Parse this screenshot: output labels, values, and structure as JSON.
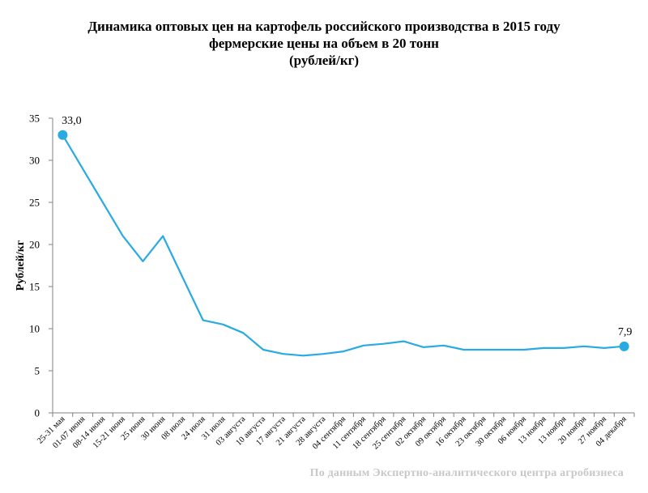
{
  "title": {
    "line1": "Динамика оптовых цен на картофель российского производства в 2015 году",
    "line2": "фермерские цены на объем в 20 тонн",
    "line3": "(рублей/кг)"
  },
  "source_note": "По данным Экспертно-аналитического центра агробизнеса",
  "chart_data": {
    "type": "line",
    "ylabel": "Рублей/кг",
    "xlabel": "",
    "ylim": [
      0,
      35
    ],
    "yticks": [
      "0",
      "5",
      "10",
      "15",
      "20",
      "25",
      "30",
      "35"
    ],
    "grid": false,
    "line_color": "#29abe2",
    "categories": [
      "25-31 мая",
      "01-07 июня",
      "08-14 июня",
      "15-21 июня",
      "25 июня",
      "30 июня",
      "08 июля",
      "24 июля",
      "31 июля",
      "03 августа",
      "10 августа",
      "17 августа",
      "21 августа",
      "28 августа",
      "04 сентября",
      "11 сентября",
      "18 сентября",
      "25 сентября",
      "02 октября",
      "09 октября",
      "16 октября",
      "23 октября",
      "30 октября",
      "06 ноября",
      "13 ноября",
      "13 ноября",
      "20 ноября",
      "27 ноября",
      "04 декабря"
    ],
    "values": [
      33.0,
      29.0,
      25.0,
      21.0,
      18.0,
      21.0,
      16.0,
      11.0,
      10.5,
      9.5,
      7.5,
      7.0,
      6.8,
      7.0,
      7.3,
      8.0,
      8.2,
      8.5,
      7.8,
      8.0,
      7.5,
      7.5,
      7.5,
      7.5,
      7.7,
      7.7,
      7.9,
      7.7,
      7.9
    ],
    "data_labels": [
      {
        "index": 0,
        "text": "33,0"
      },
      {
        "index": 28,
        "text": "7,9"
      }
    ]
  }
}
